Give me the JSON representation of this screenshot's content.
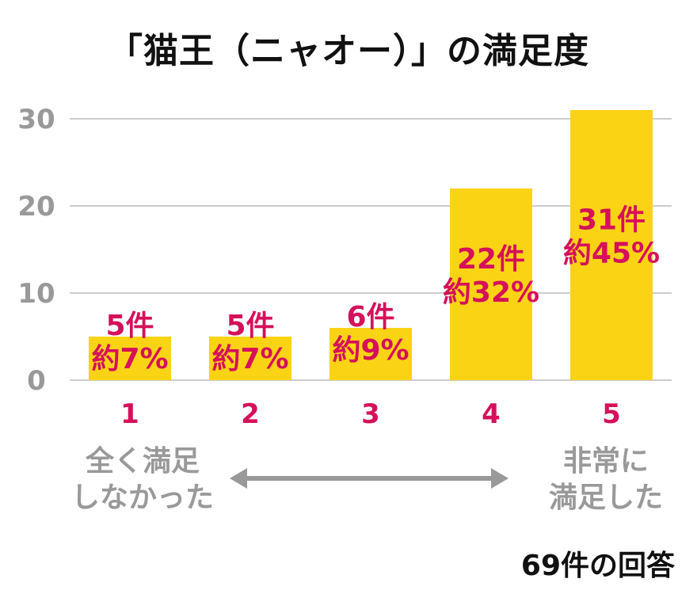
{
  "chart_data": {
    "type": "bar",
    "title": "「猫王（ニャオー）」の満足度",
    "categories": [
      "1",
      "2",
      "3",
      "4",
      "5"
    ],
    "values": [
      5,
      5,
      6,
      22,
      31
    ],
    "value_labels": [
      "5件",
      "5件",
      "6件",
      "22件",
      "31件"
    ],
    "percent_labels": [
      "約7%",
      "約7%",
      "約9%",
      "約32%",
      "約45%"
    ],
    "y_ticks": [
      0,
      10,
      20,
      30
    ],
    "ylim": [
      0,
      32
    ],
    "xlabel": "",
    "ylabel": "",
    "grid": true,
    "legend": "none"
  },
  "captions": {
    "low": [
      "全く満足",
      "しなかった"
    ],
    "high": [
      "非常に",
      "満足した"
    ]
  },
  "footer": "69件の回答",
  "colors": {
    "bar": "#FBD315",
    "label": "#D6105A",
    "axis_text": "#999999",
    "grid": "#CCCCCC",
    "arrow": "#999999",
    "title": "#111111"
  }
}
